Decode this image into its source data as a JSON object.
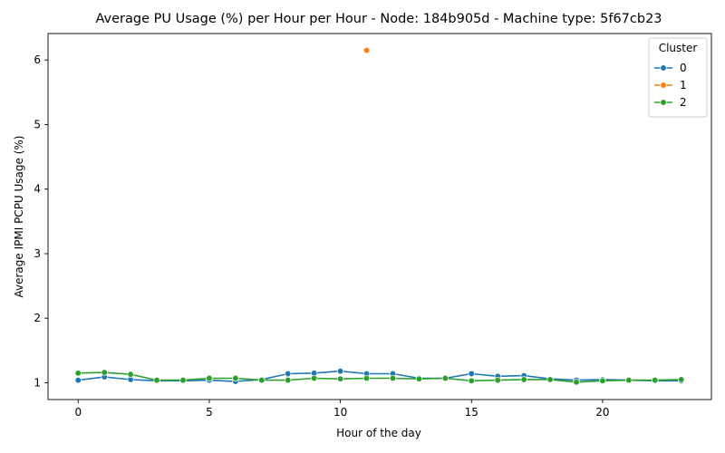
{
  "chart_data": {
    "type": "line",
    "title": "Average PU Usage (%) per Hour per Hour - Node: 184b905d - Machine type: 5f67cb23",
    "xlabel": "Hour of the day",
    "ylabel": "Average IPMI PCPU Usage (%)",
    "xlim": [
      -1.15,
      24.15
    ],
    "ylim": [
      0.74,
      6.41
    ],
    "xticks": [
      0,
      5,
      10,
      15,
      20
    ],
    "yticks": [
      1,
      2,
      3,
      4,
      5,
      6
    ],
    "grid": false,
    "legend": {
      "title": "Cluster",
      "placement": "top-right"
    },
    "series": [
      {
        "name": "0",
        "color": "#1f77b4",
        "x": [
          0,
          1,
          2,
          3,
          4,
          5,
          6,
          7,
          8,
          9,
          10,
          11,
          12,
          13,
          14,
          15,
          16,
          17,
          18,
          19,
          20,
          21,
          22,
          23
        ],
        "values": [
          1.04,
          1.09,
          1.05,
          1.03,
          1.03,
          1.04,
          1.02,
          1.05,
          1.14,
          1.15,
          1.18,
          1.14,
          1.14,
          1.07,
          1.07,
          1.14,
          1.1,
          1.11,
          1.06,
          1.04,
          1.05,
          1.04,
          1.03,
          1.03
        ]
      },
      {
        "name": "1",
        "color": "#ff7f0e",
        "x": [
          11
        ],
        "values": [
          6.15
        ]
      },
      {
        "name": "2",
        "color": "#2ca02c",
        "x": [
          0,
          1,
          2,
          3,
          4,
          5,
          6,
          7,
          8,
          9,
          10,
          11,
          12,
          13,
          14,
          15,
          16,
          17,
          18,
          19,
          20,
          21,
          22,
          23
        ],
        "values": [
          1.15,
          1.16,
          1.13,
          1.04,
          1.04,
          1.07,
          1.07,
          1.04,
          1.04,
          1.07,
          1.06,
          1.07,
          1.07,
          1.06,
          1.07,
          1.03,
          1.04,
          1.05,
          1.05,
          1.01,
          1.03,
          1.04,
          1.04,
          1.05
        ]
      }
    ]
  }
}
